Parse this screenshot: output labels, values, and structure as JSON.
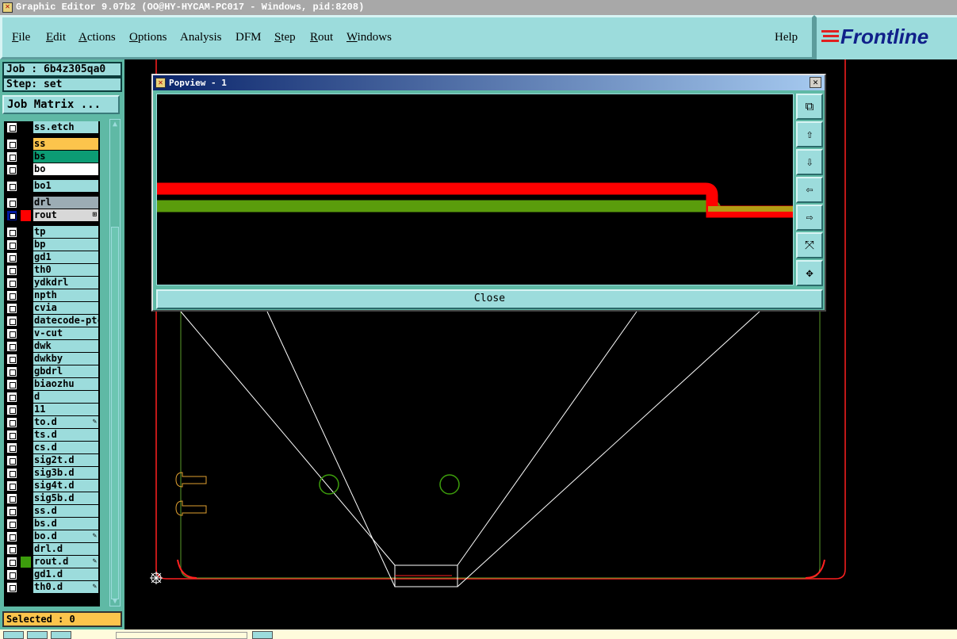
{
  "window": {
    "title": "Graphic Editor 9.07b2 (OO@HY-HYCAM-PC017 - Windows, pid:8208)"
  },
  "menu": [
    {
      "label": "File",
      "u": "F",
      "rest": "ile"
    },
    {
      "label": "Edit",
      "u": "E",
      "rest": "dit"
    },
    {
      "label": "Actions",
      "u": "A",
      "rest": "ctions"
    },
    {
      "label": "Options",
      "u": "O",
      "rest": "ptions"
    },
    {
      "label": "Analysis",
      "u": "",
      "rest": "Analysis"
    },
    {
      "label": "DFM",
      "u": "",
      "rest": "DFM"
    },
    {
      "label": "Step",
      "u": "S",
      "rest": "tep"
    },
    {
      "label": "Rout",
      "u": "R",
      "rest": "out"
    },
    {
      "label": "Windows",
      "u": "W",
      "rest": "indows"
    }
  ],
  "help": "Help",
  "logo": "Frontline",
  "job": "Job : 6b4z305qa0",
  "step": "Step: set",
  "job_matrix": "Job Matrix ...",
  "layers": [
    {
      "name": "ss.etch",
      "bg": "#9cdcdc"
    },
    {
      "name": "ss",
      "bg": "#fcc44c",
      "gap": true
    },
    {
      "name": "bs",
      "bg": "#0c9c74"
    },
    {
      "name": "bo",
      "bg": "#ffffff"
    },
    {
      "name": "bo1",
      "bg": "#9cdcdc",
      "gap": true
    },
    {
      "name": "drl",
      "bg": "#9cacb4",
      "gap": true
    },
    {
      "name": "rout",
      "bg": "#d8d8d8",
      "swatch": "#ff0000",
      "selected": true,
      "mark": "⊞"
    },
    {
      "name": "tp",
      "gap": true
    },
    {
      "name": "bp"
    },
    {
      "name": "gd1"
    },
    {
      "name": "th0"
    },
    {
      "name": "ydkdrl"
    },
    {
      "name": "npth"
    },
    {
      "name": "cvia"
    },
    {
      "name": "datecode-ptc"
    },
    {
      "name": "v-cut"
    },
    {
      "name": "dwk"
    },
    {
      "name": "dwkby"
    },
    {
      "name": "gbdrl"
    },
    {
      "name": "biaozhu"
    },
    {
      "name": "d"
    },
    {
      "name": "11"
    },
    {
      "name": "to.d",
      "mark": "✎"
    },
    {
      "name": "ts.d"
    },
    {
      "name": "cs.d"
    },
    {
      "name": "sig2t.d"
    },
    {
      "name": "sig3b.d"
    },
    {
      "name": "sig4t.d"
    },
    {
      "name": "sig5b.d"
    },
    {
      "name": "ss.d"
    },
    {
      "name": "bs.d"
    },
    {
      "name": "bo.d",
      "mark": "✎"
    },
    {
      "name": "drl.d"
    },
    {
      "name": "rout.d",
      "swatch": "#3c9c0c",
      "mark": "✎"
    },
    {
      "name": "gd1.d"
    },
    {
      "name": "th0.d",
      "mark": "✎"
    }
  ],
  "selected": "Selected : 0",
  "popview": {
    "title": "Popview - 1",
    "close": "Close",
    "tools": [
      "zoom-window-icon",
      "pan-up-icon",
      "pan-down-icon",
      "pan-left-icon",
      "pan-right-icon",
      "zoom-in-icon",
      "zoom-out-icon"
    ]
  },
  "colors": {
    "rout": "#ff0000",
    "rout_d": "#3c9c0c",
    "overlap": "#b49c14",
    "board": "#5a9c2a"
  }
}
